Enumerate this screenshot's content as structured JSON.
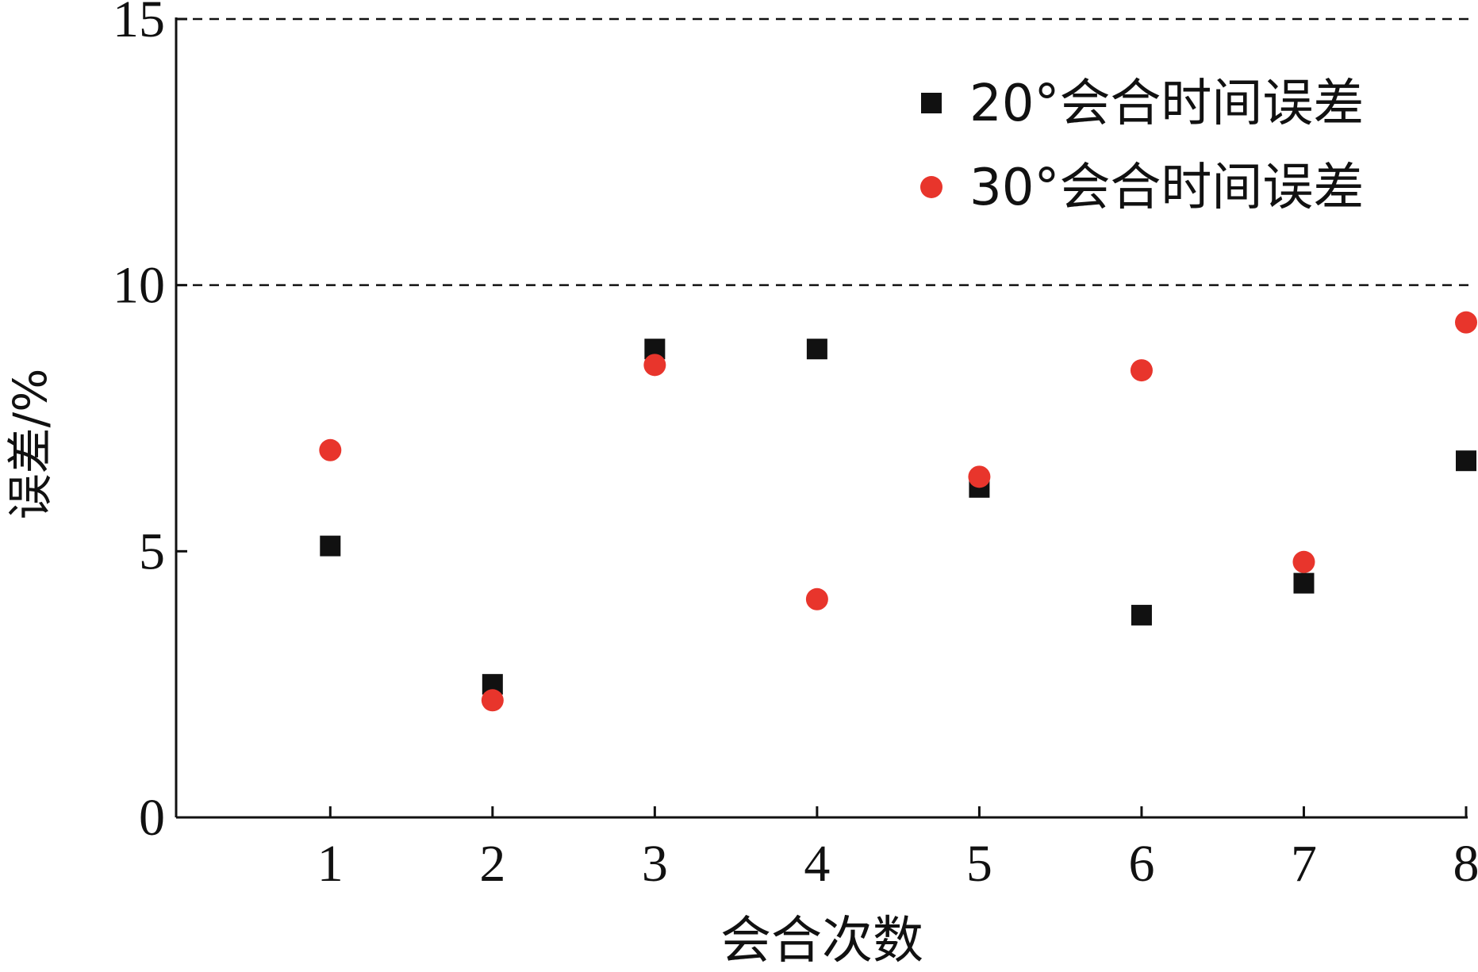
{
  "chart_data": {
    "type": "scatter",
    "title": "",
    "xlabel": "会合次数",
    "ylabel": "误差/%",
    "x": [
      1,
      2,
      3,
      4,
      5,
      6,
      7,
      8
    ],
    "xlim": [
      0.05,
      8.0
    ],
    "ylim": [
      0,
      15
    ],
    "xticks": [
      "1",
      "2",
      "3",
      "4",
      "5",
      "6",
      "7",
      "8"
    ],
    "yticks": [
      "0",
      "5",
      "10",
      "15"
    ],
    "reference_lines": [
      10,
      15
    ],
    "grid": false,
    "legend_position": "top-right",
    "series": [
      {
        "name": "20°会合时间误差",
        "marker": "square",
        "color": "#111111",
        "values": [
          5.1,
          2.5,
          8.8,
          8.8,
          6.2,
          3.8,
          4.4,
          6.7
        ]
      },
      {
        "name": "30°会合时间误差",
        "marker": "circle",
        "color": "#e8352c",
        "values": [
          6.9,
          2.2,
          8.5,
          4.1,
          6.4,
          8.4,
          4.8,
          9.3
        ]
      }
    ]
  }
}
